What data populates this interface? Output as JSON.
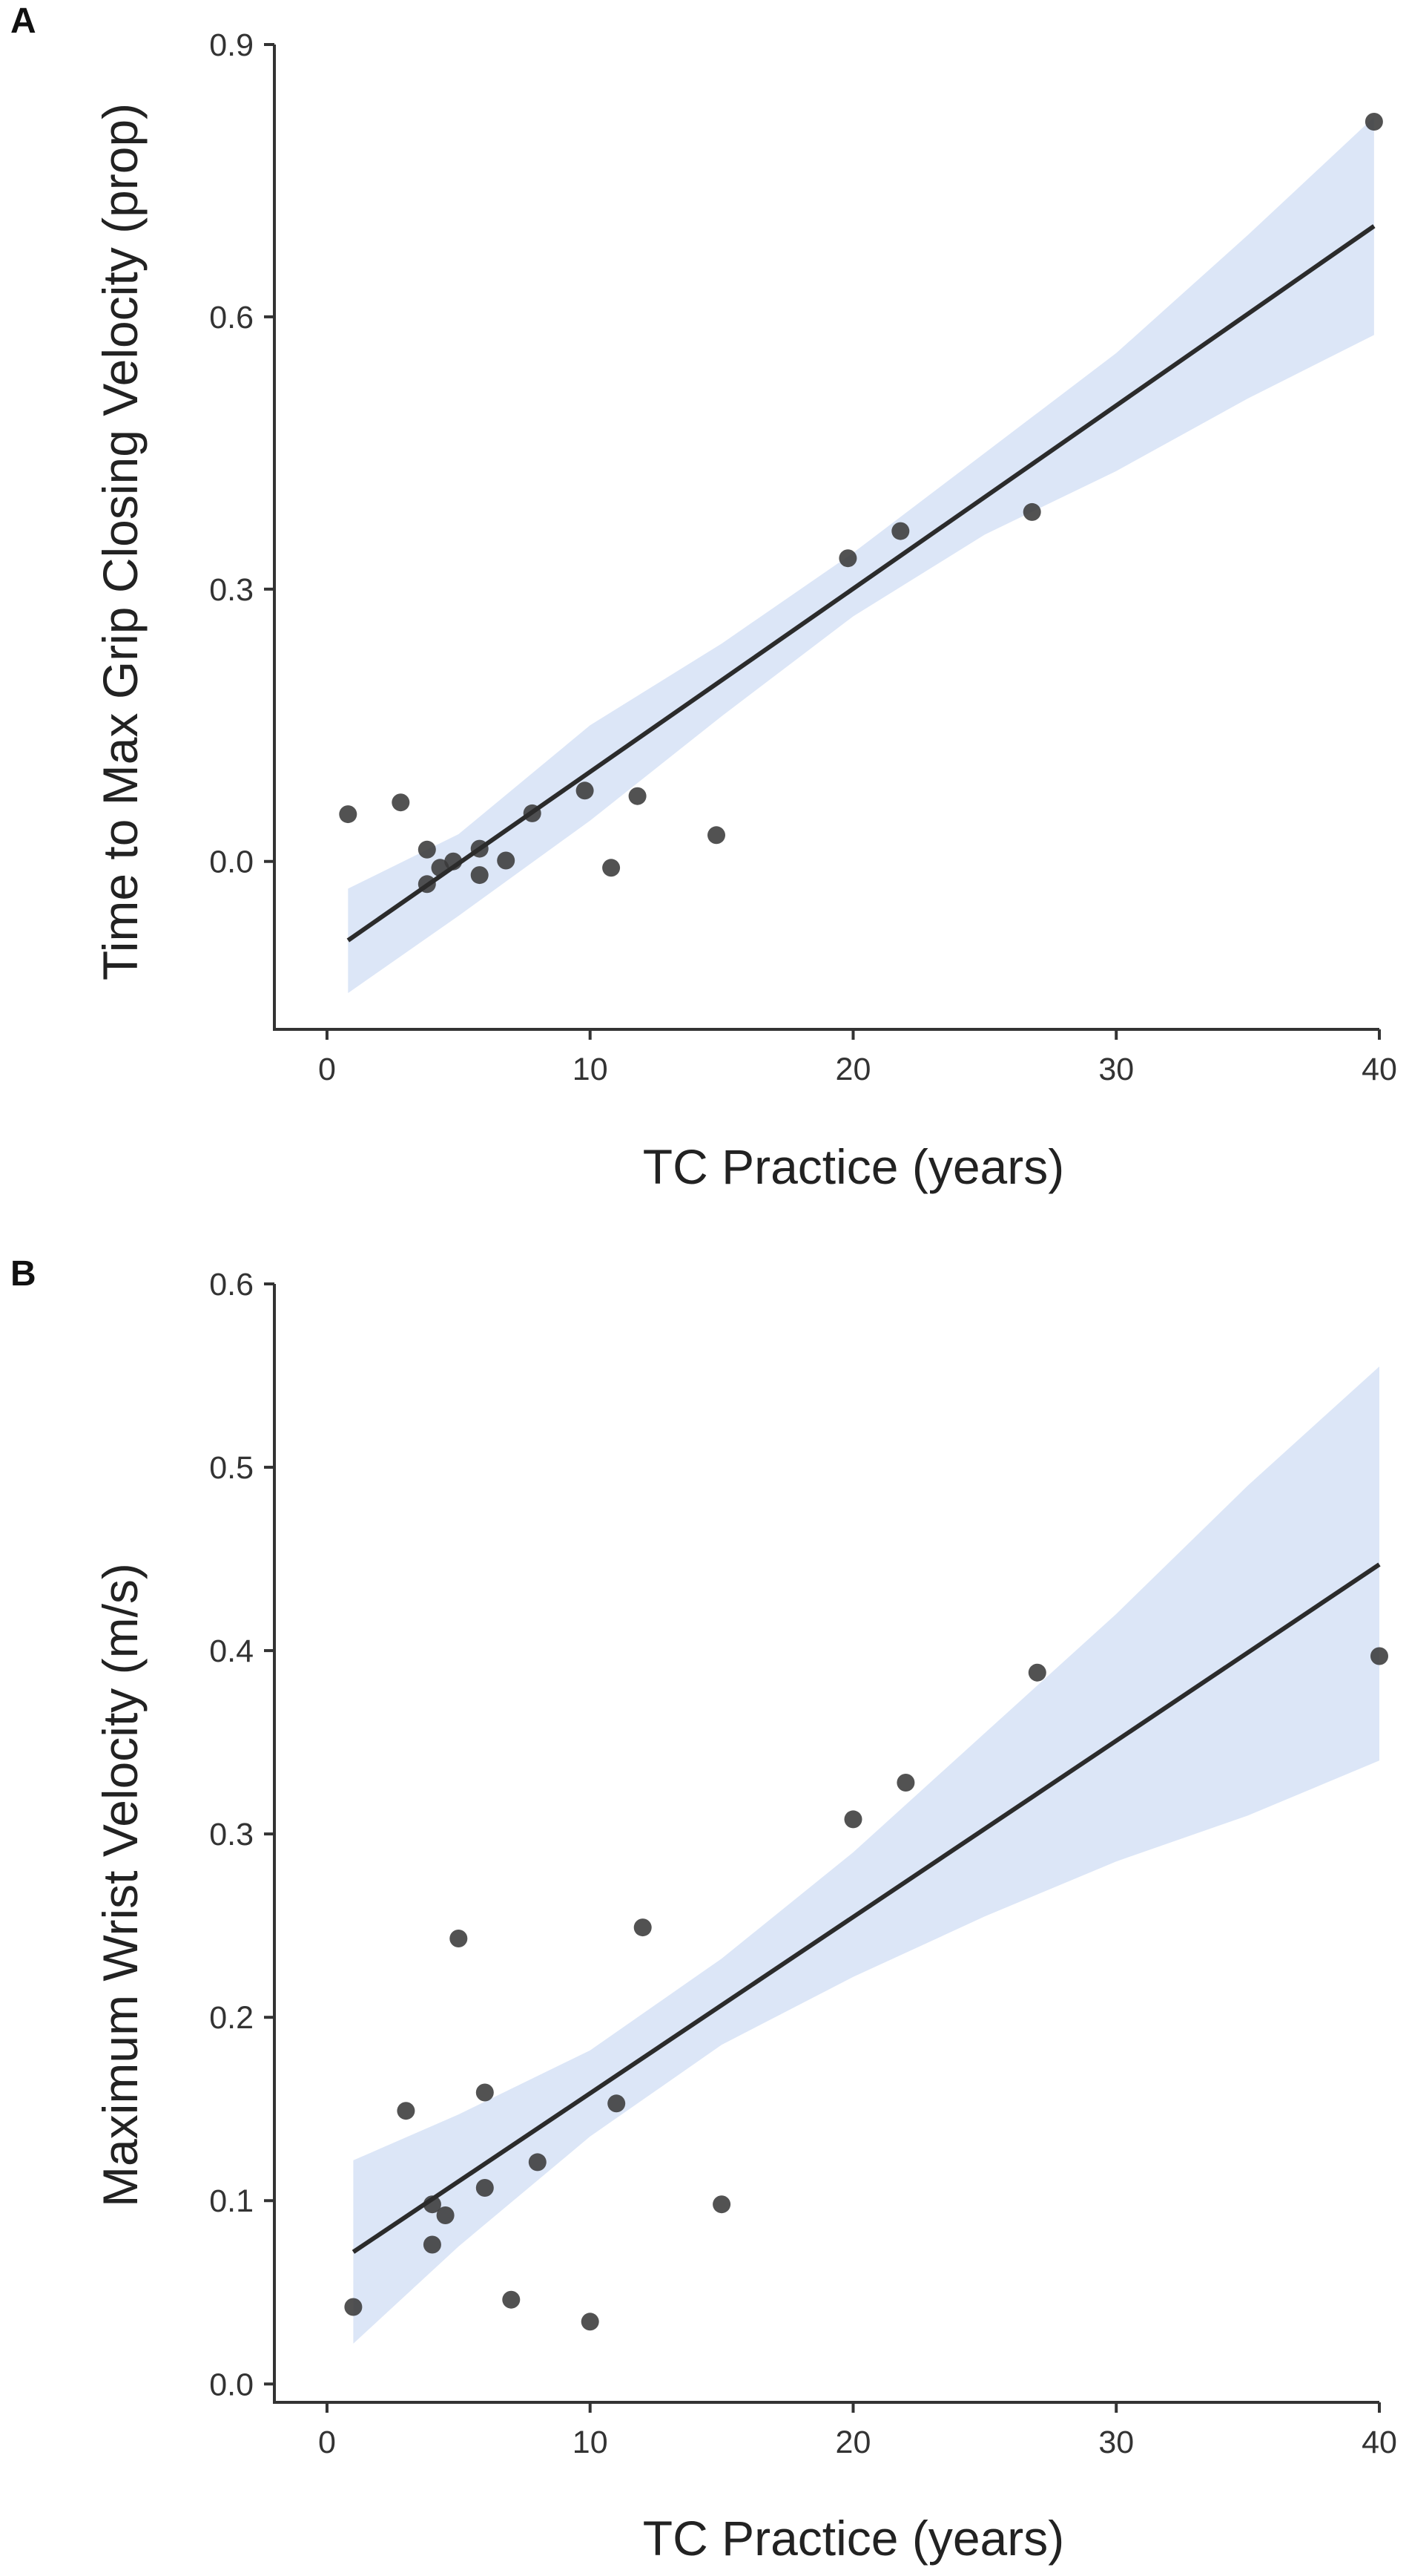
{
  "colors": {
    "band": "#dce6f7",
    "line": "#2b2b2b",
    "point": "#3a3a3a",
    "axis": "#333333"
  },
  "chart_data": [
    {
      "panel": "A",
      "type": "scatter",
      "title": "",
      "xlabel": "TC Practice (years)",
      "ylabel": "Time to Max Grip Closing Velocity (prop)",
      "xlim": [
        -2,
        40
      ],
      "ylim": [
        -0.185,
        0.9
      ],
      "xticks": [
        0,
        10,
        20,
        30,
        40
      ],
      "yticks": [
        0.0,
        0.3,
        0.6,
        0.9
      ],
      "xtick_labels": [
        "0",
        "10",
        "20",
        "30",
        "40"
      ],
      "ytick_labels": [
        "0.0",
        "0.3",
        "0.6",
        "0.9"
      ],
      "x": [
        0.8,
        2.8,
        3.8,
        3.8,
        4.3,
        4.8,
        5.8,
        5.8,
        6.8,
        7.8,
        9.8,
        10.8,
        11.8,
        14.8,
        19.8,
        21.8,
        26.8,
        39.8
      ],
      "y": [
        0.052,
        0.065,
        0.013,
        -0.025,
        -0.007,
        0.0,
        0.014,
        -0.015,
        0.001,
        0.053,
        0.078,
        -0.007,
        0.072,
        0.029,
        0.334,
        0.364,
        0.385,
        0.815
      ],
      "fit": {
        "x": [
          0.8,
          39.8
        ],
        "y": [
          -0.087,
          0.7
        ]
      },
      "ci_band": {
        "x": [
          0.8,
          5,
          10,
          15,
          20,
          25,
          30,
          35,
          39.8
        ],
        "lower": [
          -0.145,
          -0.06,
          0.045,
          0.16,
          0.27,
          0.36,
          0.43,
          0.51,
          0.58
        ],
        "upper": [
          -0.03,
          0.03,
          0.15,
          0.24,
          0.34,
          0.45,
          0.56,
          0.69,
          0.82
        ]
      }
    },
    {
      "panel": "B",
      "type": "scatter",
      "title": "",
      "xlabel": "TC Practice (years)",
      "ylabel": "Maximum Wrist Velocity (m/s)",
      "xlim": [
        -2,
        40
      ],
      "ylim": [
        -0.01,
        0.6
      ],
      "xticks": [
        0,
        10,
        20,
        30,
        40
      ],
      "yticks": [
        0.0,
        0.1,
        0.2,
        0.3,
        0.4,
        0.5,
        0.6
      ],
      "xtick_labels": [
        "0",
        "10",
        "20",
        "30",
        "40"
      ],
      "ytick_labels": [
        "0.0",
        "0.1",
        "0.2",
        "0.3",
        "0.4",
        "0.5",
        "0.6"
      ],
      "x": [
        1,
        3,
        4,
        4,
        4.5,
        5,
        6,
        6,
        7,
        8,
        10,
        11,
        12,
        15,
        20,
        22,
        27,
        40
      ],
      "y": [
        0.042,
        0.149,
        0.098,
        0.076,
        0.092,
        0.243,
        0.159,
        0.107,
        0.046,
        0.121,
        0.034,
        0.153,
        0.249,
        0.098,
        0.308,
        0.328,
        0.388,
        0.397
      ],
      "fit": {
        "x": [
          1,
          40
        ],
        "y": [
          0.072,
          0.447
        ]
      },
      "ci_band": {
        "x": [
          1,
          5,
          10,
          15,
          20,
          25,
          30,
          35,
          40
        ],
        "lower": [
          0.022,
          0.075,
          0.135,
          0.185,
          0.222,
          0.255,
          0.285,
          0.31,
          0.34
        ],
        "upper": [
          0.122,
          0.147,
          0.182,
          0.232,
          0.29,
          0.355,
          0.42,
          0.49,
          0.555
        ]
      }
    }
  ]
}
